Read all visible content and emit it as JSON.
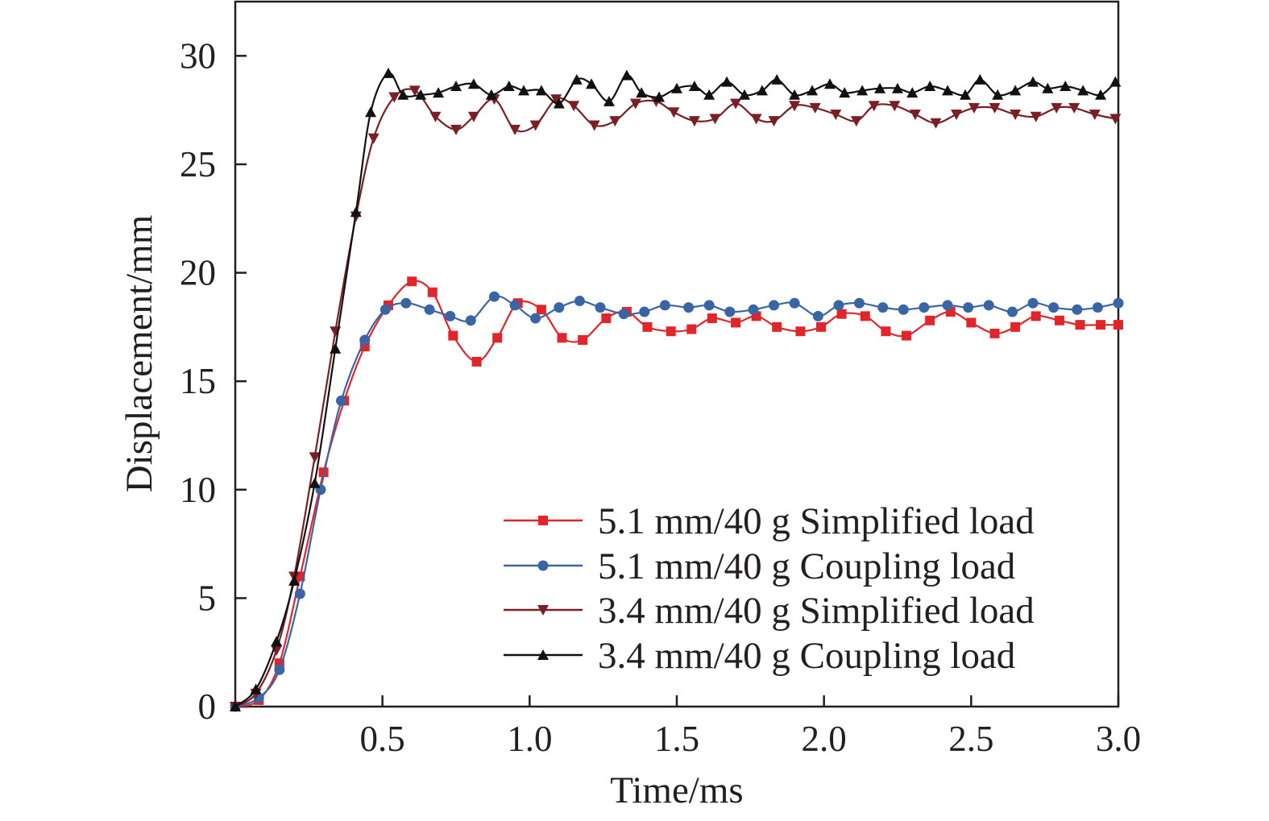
{
  "chart_data": {
    "type": "line",
    "title": "",
    "xlabel": "Time/ms",
    "ylabel": "Displacement/mm",
    "xlim": [
      0,
      3.0
    ],
    "ylim": [
      0,
      32.5
    ],
    "x_ticks": [
      "0.5",
      "1.0",
      "1.5",
      "2.0",
      "2.5",
      "3.0"
    ],
    "y_ticks": [
      "0",
      "5",
      "10",
      "15",
      "20",
      "25",
      "30"
    ],
    "grid": false,
    "legend_position": "bottom-right",
    "series": [
      {
        "name": "5.1 mm/40 g Simplified load",
        "color": "#e0262b",
        "marker": "square",
        "x": [
          0.0,
          0.08,
          0.15,
          0.22,
          0.3,
          0.37,
          0.44,
          0.52,
          0.6,
          0.67,
          0.74,
          0.82,
          0.89,
          0.96,
          1.04,
          1.11,
          1.18,
          1.26,
          1.33,
          1.4,
          1.48,
          1.55,
          1.62,
          1.7,
          1.77,
          1.84,
          1.92,
          1.99,
          2.06,
          2.14,
          2.21,
          2.28,
          2.36,
          2.43,
          2.5,
          2.58,
          2.65,
          2.72,
          2.8,
          2.87,
          2.94,
          3.0
        ],
        "values": [
          0.0,
          0.3,
          2.0,
          6.0,
          10.8,
          14.1,
          16.6,
          18.5,
          19.6,
          19.1,
          17.1,
          15.9,
          17.0,
          18.6,
          18.3,
          17.0,
          16.9,
          17.9,
          18.2,
          17.5,
          17.3,
          17.4,
          17.9,
          17.7,
          18.0,
          17.5,
          17.3,
          17.5,
          18.1,
          18.0,
          17.3,
          17.1,
          17.8,
          18.2,
          17.7,
          17.2,
          17.5,
          18.0,
          17.8,
          17.6,
          17.6,
          17.6
        ]
      },
      {
        "name": "5.1 mm/40 g Coupling load",
        "color": "#3a65a5",
        "marker": "circle",
        "x": [
          0.0,
          0.08,
          0.15,
          0.22,
          0.29,
          0.36,
          0.44,
          0.51,
          0.58,
          0.66,
          0.73,
          0.8,
          0.88,
          0.95,
          1.02,
          1.1,
          1.17,
          1.24,
          1.32,
          1.39,
          1.46,
          1.54,
          1.61,
          1.68,
          1.76,
          1.83,
          1.9,
          1.98,
          2.05,
          2.12,
          2.2,
          2.27,
          2.34,
          2.42,
          2.49,
          2.56,
          2.64,
          2.71,
          2.78,
          2.86,
          2.93,
          3.0
        ],
        "values": [
          0.0,
          0.4,
          1.7,
          5.2,
          10.0,
          14.1,
          16.9,
          18.3,
          18.6,
          18.3,
          18.0,
          17.8,
          18.9,
          18.5,
          17.9,
          18.4,
          18.7,
          18.4,
          18.1,
          18.2,
          18.5,
          18.4,
          18.5,
          18.2,
          18.3,
          18.5,
          18.6,
          18.0,
          18.5,
          18.6,
          18.4,
          18.3,
          18.4,
          18.5,
          18.4,
          18.5,
          18.2,
          18.6,
          18.4,
          18.3,
          18.4,
          18.6
        ]
      },
      {
        "name": "3.4 mm/40 g Simplified load",
        "color": "#7a1f24",
        "marker": "triangle-down",
        "x": [
          0.0,
          0.07,
          0.14,
          0.2,
          0.27,
          0.34,
          0.41,
          0.47,
          0.54,
          0.61,
          0.68,
          0.75,
          0.81,
          0.88,
          0.95,
          1.02,
          1.09,
          1.15,
          1.22,
          1.29,
          1.36,
          1.43,
          1.49,
          1.56,
          1.63,
          1.7,
          1.77,
          1.83,
          1.9,
          1.97,
          2.04,
          2.11,
          2.17,
          2.24,
          2.31,
          2.38,
          2.45,
          2.51,
          2.58,
          2.65,
          2.72,
          2.79,
          2.85,
          2.92,
          2.99
        ],
        "values": [
          0.0,
          0.6,
          2.6,
          6.0,
          11.5,
          17.3,
          22.6,
          26.2,
          28.1,
          28.4,
          27.2,
          26.6,
          27.2,
          28.0,
          26.6,
          26.8,
          28.0,
          27.7,
          26.8,
          27.0,
          27.8,
          27.9,
          27.4,
          27.0,
          27.1,
          27.8,
          27.1,
          27.0,
          27.7,
          27.6,
          27.3,
          27.0,
          27.7,
          27.7,
          27.3,
          26.9,
          27.3,
          27.6,
          27.6,
          27.3,
          27.2,
          27.6,
          27.6,
          27.3,
          27.1
        ]
      },
      {
        "name": "3.4 mm/40 g Coupling load",
        "color": "#111111",
        "marker": "triangle-up",
        "x": [
          0.0,
          0.07,
          0.14,
          0.2,
          0.27,
          0.34,
          0.41,
          0.46,
          0.52,
          0.57,
          0.63,
          0.69,
          0.75,
          0.81,
          0.87,
          0.93,
          0.98,
          1.04,
          1.1,
          1.16,
          1.21,
          1.27,
          1.33,
          1.38,
          1.44,
          1.5,
          1.56,
          1.61,
          1.67,
          1.73,
          1.79,
          1.84,
          1.9,
          1.96,
          2.02,
          2.07,
          2.13,
          2.19,
          2.25,
          2.3,
          2.36,
          2.42,
          2.48,
          2.53,
          2.59,
          2.65,
          2.71,
          2.76,
          2.82,
          2.88,
          2.94,
          2.99
        ],
        "values": [
          0.0,
          0.8,
          3.0,
          5.8,
          10.3,
          16.5,
          22.8,
          27.4,
          29.2,
          28.2,
          28.2,
          28.3,
          28.6,
          28.7,
          28.2,
          28.6,
          28.4,
          28.4,
          27.8,
          28.9,
          28.7,
          27.9,
          29.1,
          28.3,
          28.1,
          28.5,
          28.6,
          28.2,
          28.8,
          28.2,
          28.4,
          28.9,
          28.2,
          28.4,
          28.7,
          28.3,
          28.4,
          28.5,
          28.5,
          28.3,
          28.6,
          28.4,
          28.2,
          28.9,
          28.2,
          28.4,
          28.8,
          28.5,
          28.6,
          28.4,
          28.2,
          28.8
        ]
      }
    ]
  }
}
